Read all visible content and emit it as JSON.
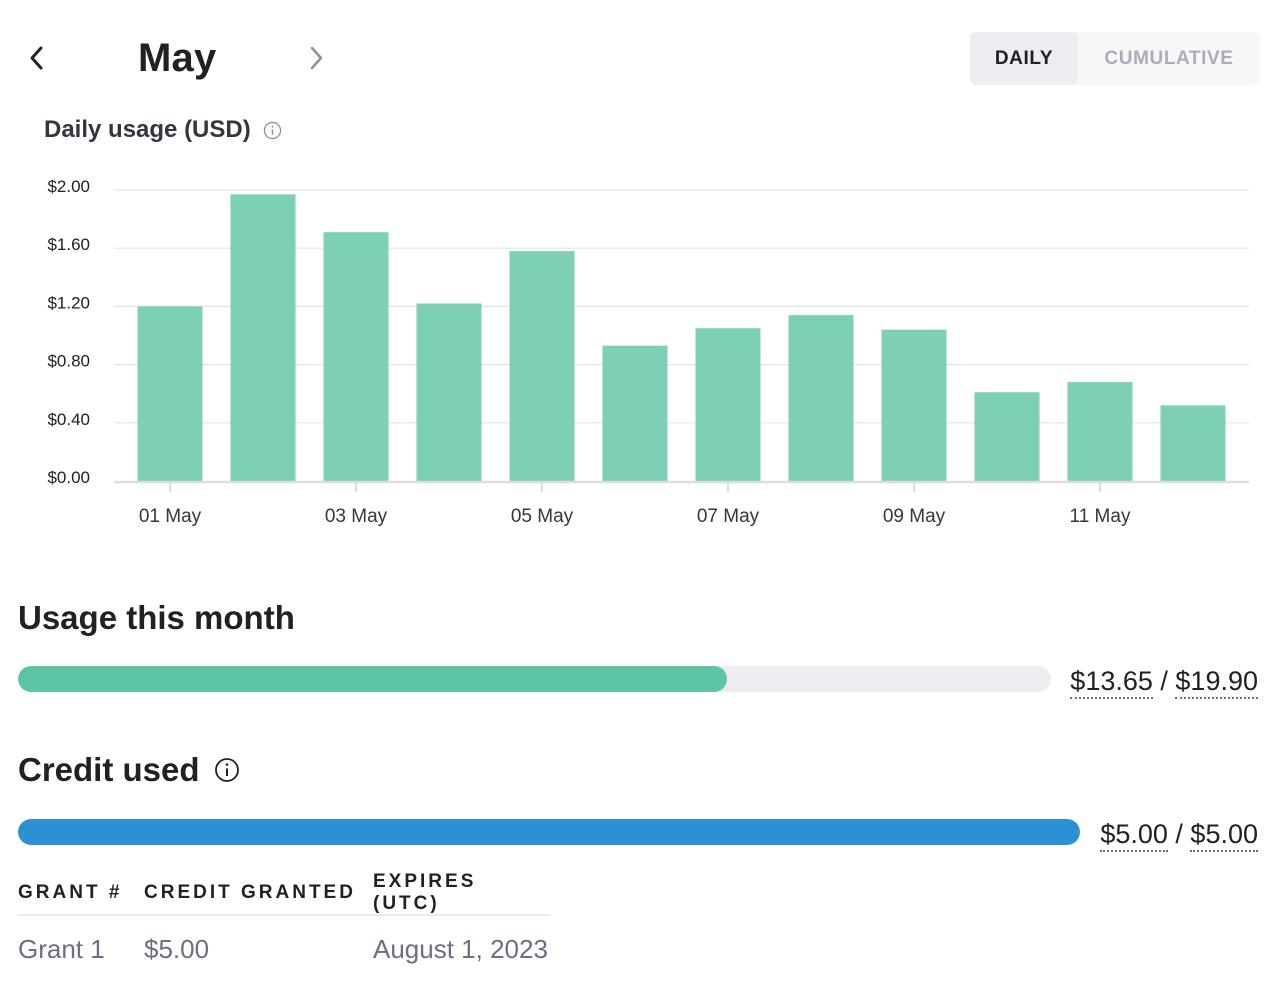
{
  "header": {
    "month": "May",
    "prev_icon": "chevron-left-icon",
    "next_icon": "chevron-right-icon",
    "view_toggle": {
      "daily_label": "DAILY",
      "cumulative_label": "CUMULATIVE",
      "selected": "DAILY"
    }
  },
  "chart": {
    "title": "Daily usage (USD)",
    "info_icon": "info-icon"
  },
  "chart_data": {
    "type": "bar",
    "title": "Daily usage (USD)",
    "xlabel": "",
    "ylabel": "",
    "categories": [
      "01 May",
      "02 May",
      "03 May",
      "04 May",
      "05 May",
      "06 May",
      "07 May",
      "08 May",
      "09 May",
      "10 May",
      "11 May",
      "12 May"
    ],
    "x_tick_labels": [
      "01 May",
      "03 May",
      "05 May",
      "07 May",
      "09 May",
      "11 May"
    ],
    "y_tick_labels": [
      "$0.00",
      "$0.40",
      "$0.80",
      "$1.20",
      "$1.60",
      "$2.00"
    ],
    "values": [
      1.2,
      1.97,
      1.71,
      1.22,
      1.58,
      0.93,
      1.05,
      1.14,
      1.04,
      0.61,
      0.68,
      0.52
    ],
    "ylim": [
      0,
      2.0
    ],
    "grid": true,
    "bar_color": "#7dcfb6"
  },
  "usage": {
    "title": "Usage this month",
    "used": "$13.65",
    "separator": " / ",
    "limit": "$19.90",
    "fraction": 0.686,
    "color": "#5ec4a8"
  },
  "credit": {
    "title": "Credit used",
    "info_icon": "info-icon",
    "used": "$5.00",
    "separator": " / ",
    "limit": "$5.00",
    "fraction": 1.0,
    "color": "#2b90d4"
  },
  "grants": {
    "headers": [
      "GRANT #",
      "CREDIT GRANTED",
      "EXPIRES (UTC)"
    ],
    "rows": [
      {
        "grant": "Grant 1",
        "credit": "$5.00",
        "expires": "August 1, 2023"
      }
    ]
  }
}
